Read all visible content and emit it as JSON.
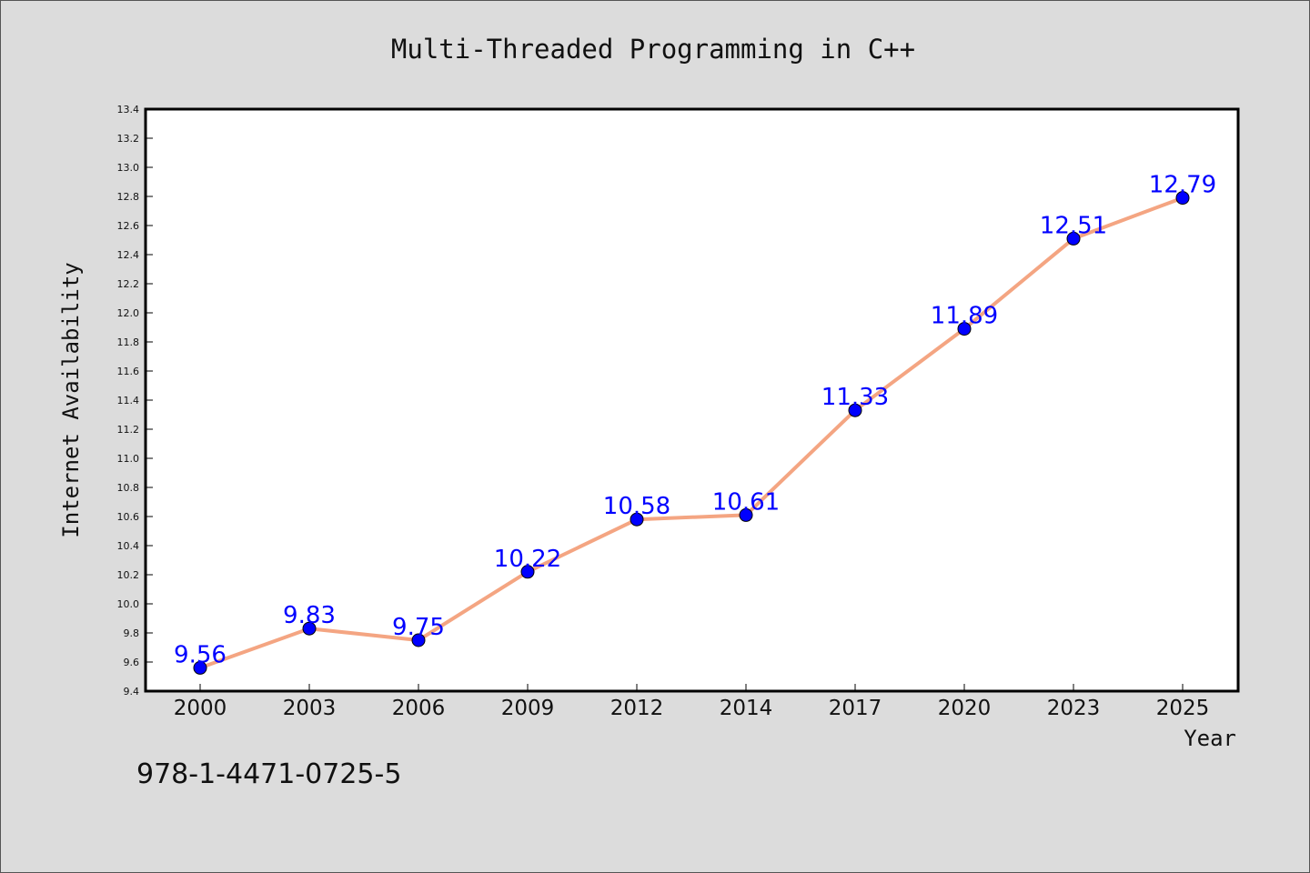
{
  "chart_data": {
    "type": "line",
    "title": "Multi-Threaded Programming in C++",
    "xlabel": "Year",
    "ylabel": "Internet Availability",
    "categories": [
      "2000",
      "2003",
      "2006",
      "2009",
      "2012",
      "2014",
      "2017",
      "2020",
      "2023",
      "2025"
    ],
    "series": [
      {
        "values": [
          9.56,
          9.83,
          9.75,
          10.22,
          10.58,
          10.61,
          11.33,
          11.89,
          12.51,
          12.79
        ],
        "line_color": "#f4a582",
        "marker_color": "#0000ff"
      }
    ],
    "data_labels": [
      "9.56",
      "9.83",
      "9.75",
      "10.22",
      "10.58",
      "10.61",
      "11.33",
      "11.89",
      "12.51",
      "12.79"
    ],
    "ylim": [
      9.4,
      13.4
    ],
    "yticks": [
      "9.4",
      "9.6",
      "9.8",
      "10.0",
      "10.2",
      "10.4",
      "10.6",
      "10.8",
      "11.0",
      "11.2",
      "11.4",
      "11.6",
      "11.8",
      "12.0",
      "12.2",
      "12.4",
      "12.6",
      "12.8",
      "13.0",
      "13.2",
      "13.4"
    ],
    "grid": false,
    "legend": "none",
    "label_color": "#0000ff"
  },
  "footer": {
    "isbn": "978-1-4471-0725-5"
  }
}
